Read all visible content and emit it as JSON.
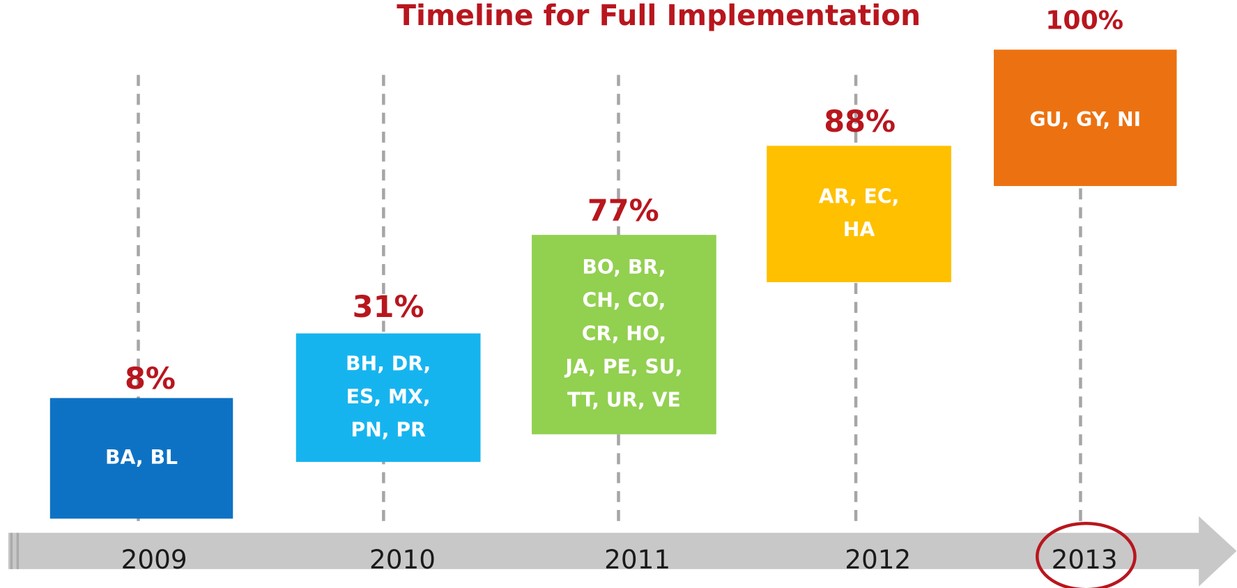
{
  "title": "Timeline for Full Implementation",
  "stages": [
    {
      "year": "2009",
      "percent": "8%",
      "countries": [
        "BA, BL"
      ],
      "color": "#0e72c4"
    },
    {
      "year": "2010",
      "percent": "31%",
      "countries": [
        "BH, DR,",
        "ES, MX,",
        "PN, PR"
      ],
      "color": "#16b4ef"
    },
    {
      "year": "2011",
      "percent": "77%",
      "countries": [
        "BO, BR,",
        "CH, CO,",
        "CR, HO,",
        "JA, PE, SU,",
        "TT, UR, VE"
      ],
      "color": "#92d050"
    },
    {
      "year": "2012",
      "percent": "88%",
      "countries": [
        "AR, EC,",
        "HA"
      ],
      "color": "#ffc000"
    },
    {
      "year": "2013",
      "percent": "100%",
      "countries": [
        "GU, GY, NI"
      ],
      "color": "#ec7211"
    }
  ]
}
